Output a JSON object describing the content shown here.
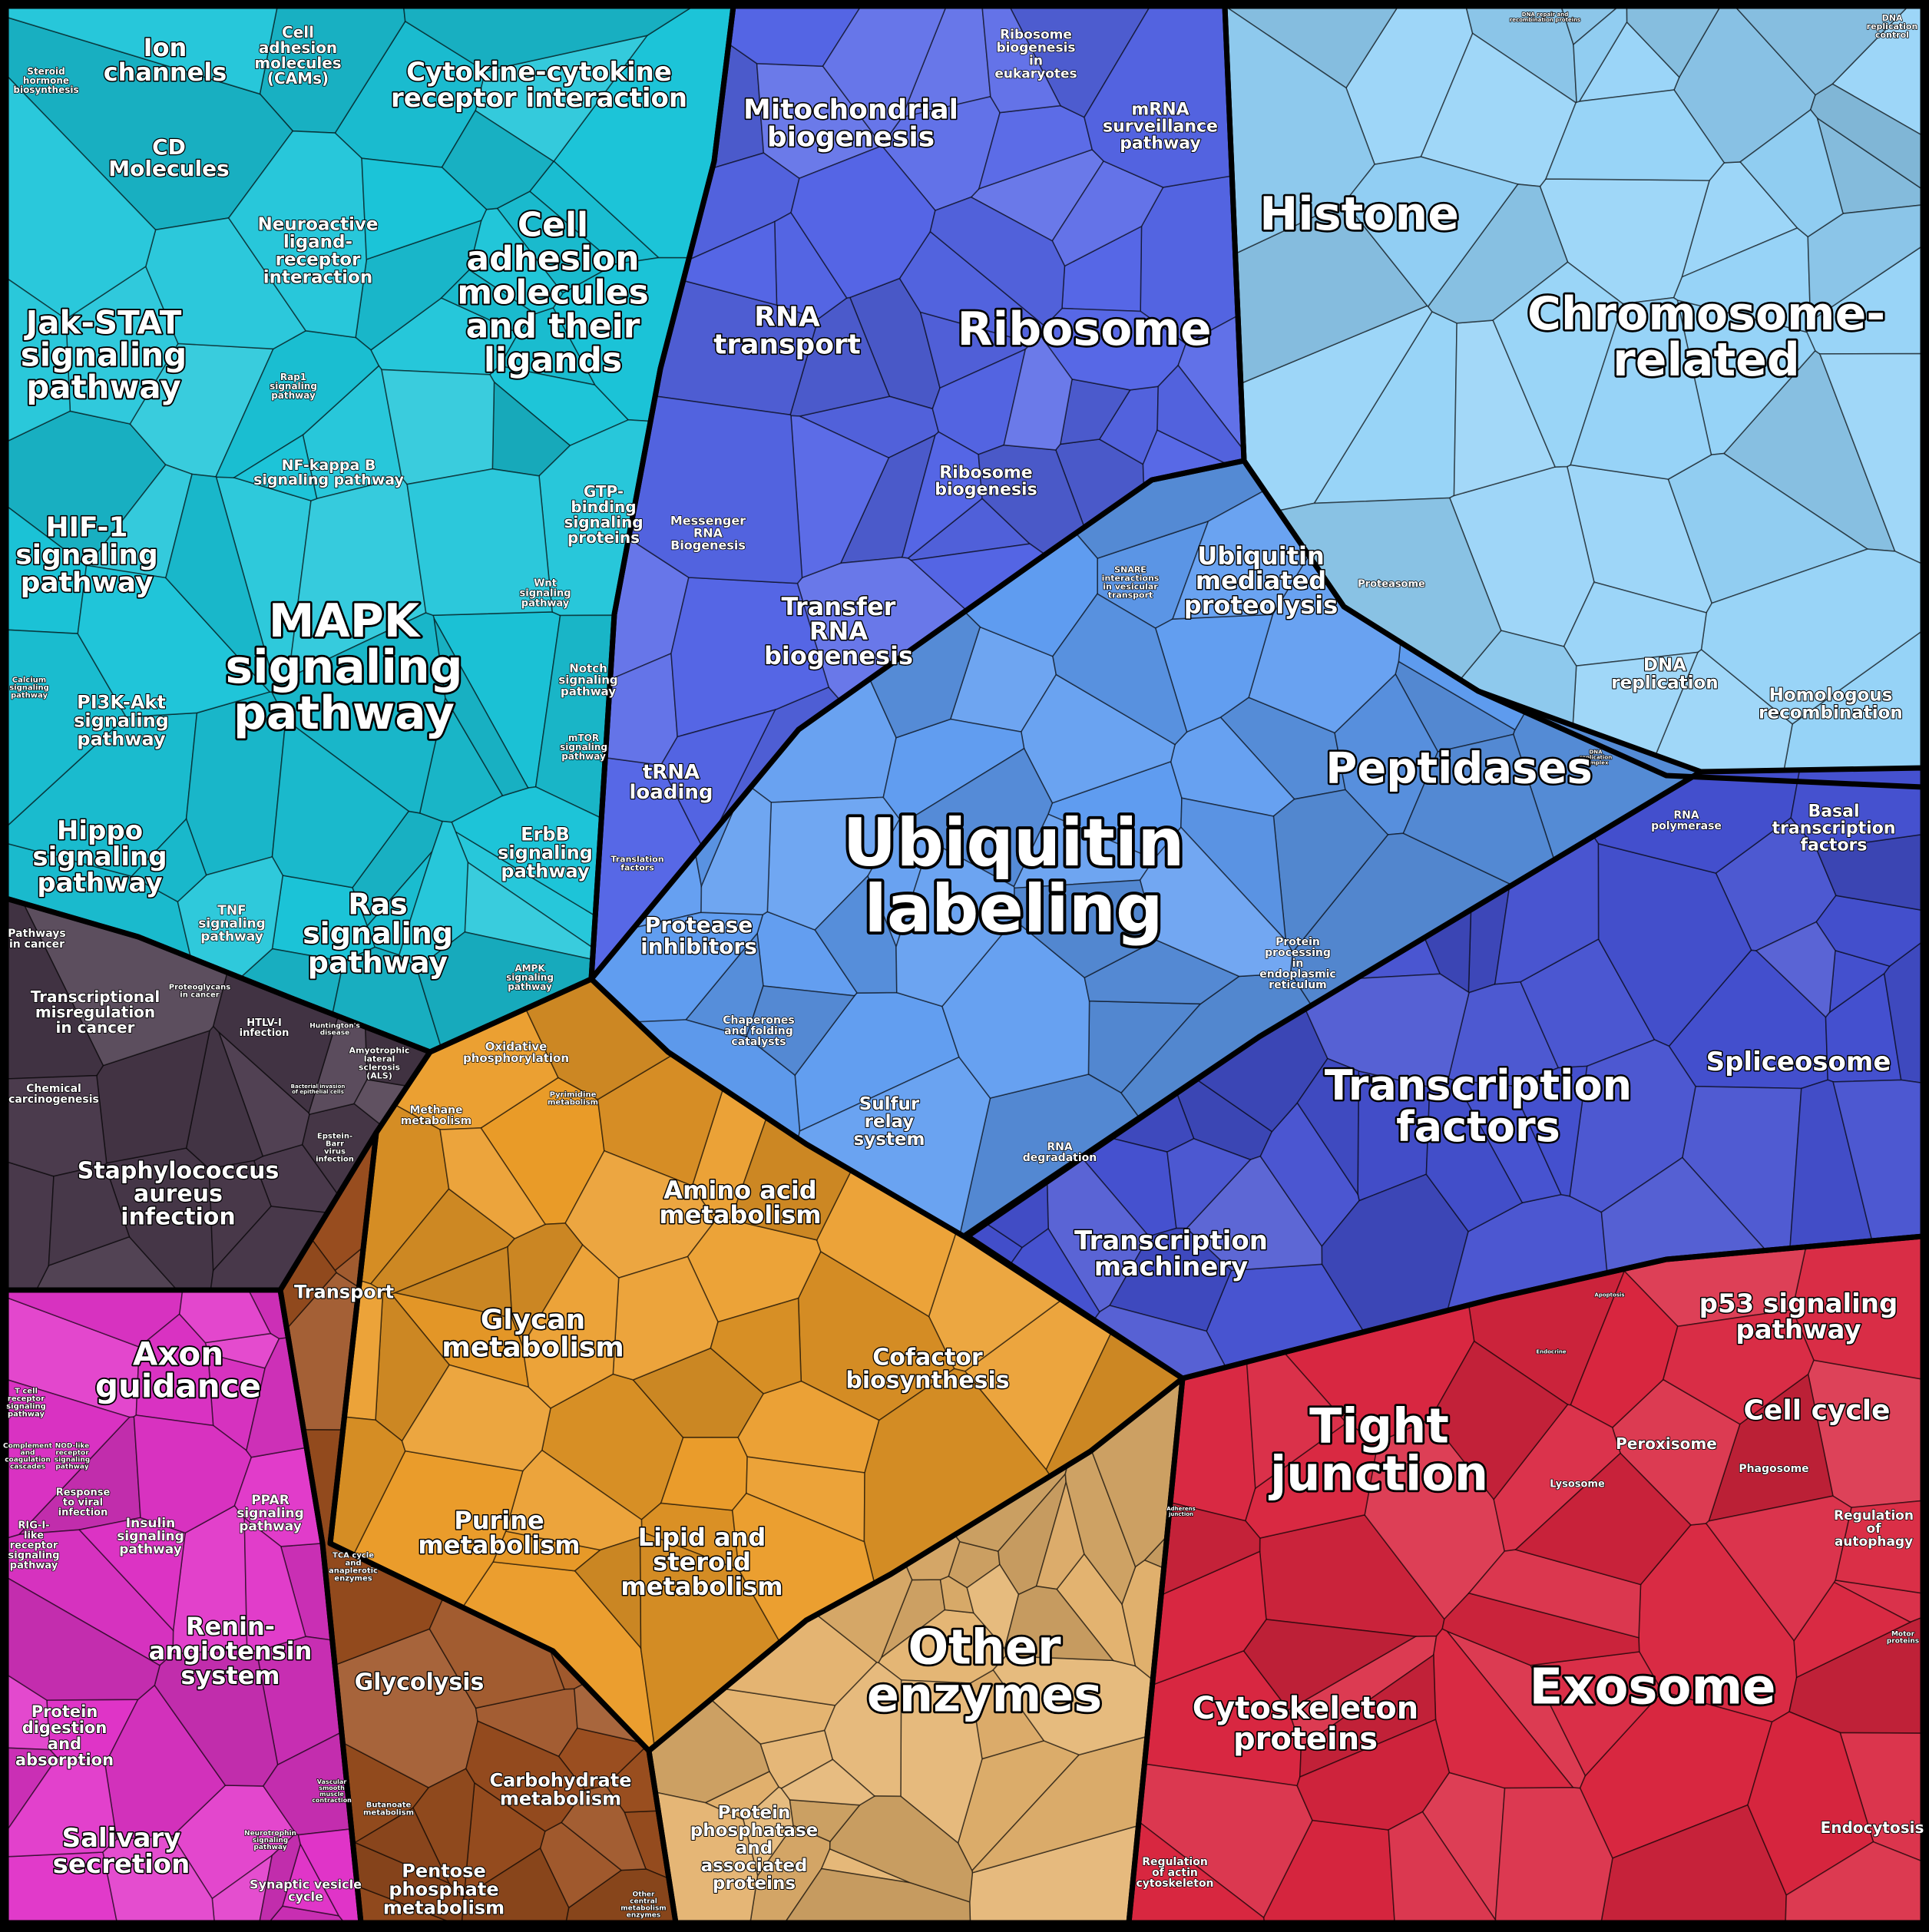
{
  "regions": [
    {
      "name": "cyan-signaling",
      "color": "#1bc4d8"
    },
    {
      "name": "blue-ribosome",
      "color": "#5566e6"
    },
    {
      "name": "lightblue-histone",
      "color": "#94d2f7"
    },
    {
      "name": "ubiquitin",
      "color": "#5f9cf0"
    },
    {
      "name": "transcription",
      "color": "#4450cf"
    },
    {
      "name": "dark-infection",
      "color": "#4a3a4c"
    },
    {
      "name": "orange-metabolism",
      "color": "#ea9b28"
    },
    {
      "name": "brown-metabolism",
      "color": "#9a4e1f"
    },
    {
      "name": "tan-enzymes",
      "color": "#e3b26e"
    },
    {
      "name": "magenta",
      "color": "#e034c8"
    },
    {
      "name": "red",
      "color": "#d8253f"
    }
  ],
  "labels": {
    "ion_channels": [
      "Ion",
      "channels"
    ],
    "cams": [
      "Cell",
      "adhesion",
      "molecules",
      "(CAMs)"
    ],
    "steroid": [
      "Steroid",
      "hormone",
      "biosynthesis"
    ],
    "cd_molecules": [
      "CD",
      "Molecules"
    ],
    "cytokine": [
      "Cytokine-cytokine",
      "receptor interaction"
    ],
    "neuroactive": [
      "Neuroactive",
      "ligand-",
      "receptor",
      "interaction"
    ],
    "cell_adhesion_ligands": [
      "Cell",
      "adhesion",
      "molecules",
      "and their",
      "ligands"
    ],
    "jak_stat": [
      "Jak-STAT",
      "signaling",
      "pathway"
    ],
    "rap1": [
      "Rap1",
      "signaling",
      "pathway"
    ],
    "nfkb": [
      "NF-kappa B",
      "signaling pathway"
    ],
    "hif1": [
      "HIF-1",
      "signaling",
      "pathway"
    ],
    "gtp": [
      "GTP-",
      "binding",
      "signaling",
      "proteins"
    ],
    "mapk": [
      "MAPK",
      "signaling",
      "pathway"
    ],
    "wnt": [
      "Wnt",
      "signaling",
      "pathway"
    ],
    "notch": [
      "Notch",
      "signaling",
      "pathway"
    ],
    "calcium": [
      "Calcium",
      "signaling",
      "pathway"
    ],
    "pi3k": [
      "PI3K-Akt",
      "signaling",
      "pathway"
    ],
    "mtor": [
      "mTOR",
      "signaling",
      "pathway"
    ],
    "hippo": [
      "Hippo",
      "signaling",
      "pathway"
    ],
    "erbb": [
      "ErbB",
      "signaling",
      "pathway"
    ],
    "tnf": [
      "TNF",
      "signaling",
      "pathway"
    ],
    "ras": [
      "Ras",
      "signaling",
      "pathway"
    ],
    "ampk": [
      "AMPK",
      "signaling",
      "pathway"
    ],
    "mito": [
      "Mitochondrial",
      "biogenesis"
    ],
    "ribo_euk": [
      "Ribosome",
      "biogenesis",
      "in",
      "eukaryotes"
    ],
    "mrna_surv": [
      "mRNA",
      "surveillance",
      "pathway"
    ],
    "rna_transport": [
      "RNA",
      "transport"
    ],
    "ribosome": [
      "Ribosome"
    ],
    "ribo_biogenesis": [
      "Ribosome",
      "biogenesis"
    ],
    "mrna_biogenesis": [
      "Messenger",
      "RNA",
      "Biogenesis"
    ],
    "trna_biogenesis": [
      "Transfer",
      "RNA",
      "biogenesis"
    ],
    "trna_loading": [
      "tRNA",
      "loading"
    ],
    "translation_factors": [
      "Translation",
      "factors"
    ],
    "histone": [
      "Histone"
    ],
    "dna_repair": [
      "DNA repair and",
      "recombination proteins"
    ],
    "dna_rep_control": [
      "DNA",
      "replication",
      "control"
    ],
    "chromosome": [
      "Chromosome-",
      "related"
    ],
    "dna_replication": [
      "DNA",
      "replication"
    ],
    "homologous": [
      "Homologous",
      "recombination"
    ],
    "dna_rep_comp": [
      "DNA",
      "replication",
      "complex"
    ],
    "snare": [
      "SNARE",
      "interactions",
      "in vesicular",
      "transport"
    ],
    "ubiq_mediated": [
      "Ubiquitin",
      "mediated",
      "proteolysis"
    ],
    "proteasome": [
      "Proteasome"
    ],
    "peptidases": [
      "Peptidases"
    ],
    "ubiquitin": [
      "Ubiquitin",
      "labeling"
    ],
    "protease_inh": [
      "Protease",
      "inhibitors"
    ],
    "chaperones": [
      "Chaperones",
      "and folding",
      "catalysts"
    ],
    "protein_proc": [
      "Protein",
      "processing",
      "in",
      "endoplasmic",
      "reticulum"
    ],
    "sulfur": [
      "Sulfur",
      "relay",
      "system"
    ],
    "rna_degradation": [
      "RNA",
      "degradation"
    ],
    "rna_polymerase": [
      "RNA",
      "polymerase"
    ],
    "basal_tf": [
      "Basal",
      "transcription",
      "factors"
    ],
    "spliceosome": [
      "Spliceosome"
    ],
    "transcription_factors": [
      "Transcription",
      "factors"
    ],
    "transcription_machinery": [
      "Transcription",
      "machinery"
    ],
    "pathways_cancer": [
      "Pathways",
      "in cancer"
    ],
    "transcriptional_mis": [
      "Transcriptional",
      "misregulation",
      "in cancer"
    ],
    "proteoglycans": [
      "Proteoglycans",
      "in cancer"
    ],
    "htlv": [
      "HTLV-I",
      "infection"
    ],
    "huntington": [
      "Huntington's",
      "disease"
    ],
    "als": [
      "Amyotrophic",
      "lateral",
      "sclerosis",
      "(ALS)"
    ],
    "chemical_carc": [
      "Chemical",
      "carcinogenesis"
    ],
    "bacterial_inv": [
      "Bacterial invasion",
      "of epithelial cells"
    ],
    "epstein": [
      "Epstein-",
      "Barr",
      "virus",
      "infection"
    ],
    "staph": [
      "Staphylococcus",
      "aureus",
      "infection"
    ],
    "oxphos": [
      "Oxidative",
      "phosphorylation"
    ],
    "pyrimidine": [
      "Pyrimidine",
      "metabolism"
    ],
    "methane": [
      "Methane",
      "metabolism"
    ],
    "amino_acid": [
      "Amino acid",
      "metabolism"
    ],
    "glycan": [
      "Glycan",
      "metabolism"
    ],
    "transport": [
      "Transport"
    ],
    "cofactor": [
      "Cofactor",
      "biosynthesis"
    ],
    "purine": [
      "Purine",
      "metabolism"
    ],
    "lipid": [
      "Lipid and",
      "steroid",
      "metabolism"
    ],
    "tca": [
      "TCA cycle",
      "and",
      "anaplerotic",
      "enzymes"
    ],
    "glycolysis": [
      "Glycolysis"
    ],
    "carbohydrate": [
      "Carbohydrate",
      "metabolism"
    ],
    "butanoate": [
      "Butanoate",
      "metabolism"
    ],
    "pentose": [
      "Pentose",
      "phosphate",
      "metabolism"
    ],
    "other_central": [
      "Other",
      "central",
      "metabolism",
      "enzymes"
    ],
    "other_enzymes": [
      "Other",
      "enzymes"
    ],
    "protein_phosphatase": [
      "Protein",
      "phosphatase",
      "and",
      "associated",
      "proteins"
    ],
    "axon": [
      "Axon",
      "guidance"
    ],
    "tcell": [
      "T cell",
      "receptor",
      "signaling",
      "pathway"
    ],
    "complement": [
      "Complement",
      "and",
      "coagulation",
      "cascades"
    ],
    "nod": [
      "NOD-like",
      "receptor",
      "signaling",
      "pathway"
    ],
    "response_viral": [
      "Response",
      "to viral",
      "infection"
    ],
    "insulin": [
      "Insulin",
      "signaling",
      "pathway"
    ],
    "ppar": [
      "PPAR",
      "signaling",
      "pathway"
    ],
    "rigi": [
      "RIG-I-",
      "like",
      "receptor",
      "signaling",
      "pathway"
    ],
    "renin": [
      "Renin-",
      "angiotensin",
      "system"
    ],
    "protein_digestion": [
      "Protein",
      "digestion",
      "and",
      "absorption"
    ],
    "vascular": [
      "Vascular",
      "smooth",
      "muscle",
      "contraction"
    ],
    "salivary": [
      "Salivary",
      "secretion"
    ],
    "neurotrophin": [
      "Neurotrophin",
      "signaling",
      "pathway"
    ],
    "synaptic": [
      "Synaptic vesicle",
      "cycle"
    ],
    "tight_junction": [
      "Tight",
      "junction"
    ],
    "p53": [
      "p53 signaling",
      "pathway"
    ],
    "cell_cycle": [
      "Cell cycle"
    ],
    "peroxisome": [
      "Peroxisome"
    ],
    "phagosome": [
      "Phagosome"
    ],
    "lysosome": [
      "Lysosome"
    ],
    "autophagy": [
      "Regulation",
      "of",
      "autophagy"
    ],
    "adherens": [
      "Adherens",
      "junction"
    ],
    "cytoskeleton": [
      "Cytoskeleton",
      "proteins"
    ],
    "exosome": [
      "Exosome"
    ],
    "motor": [
      "Motor",
      "proteins"
    ],
    "actin": [
      "Regulation",
      "of actin",
      "cytoskeleton"
    ],
    "endocytosis": [
      "Endocytosis"
    ],
    "apoptosis": [
      "Apoptosis"
    ],
    "endocrine": [
      "Endocrine"
    ]
  }
}
